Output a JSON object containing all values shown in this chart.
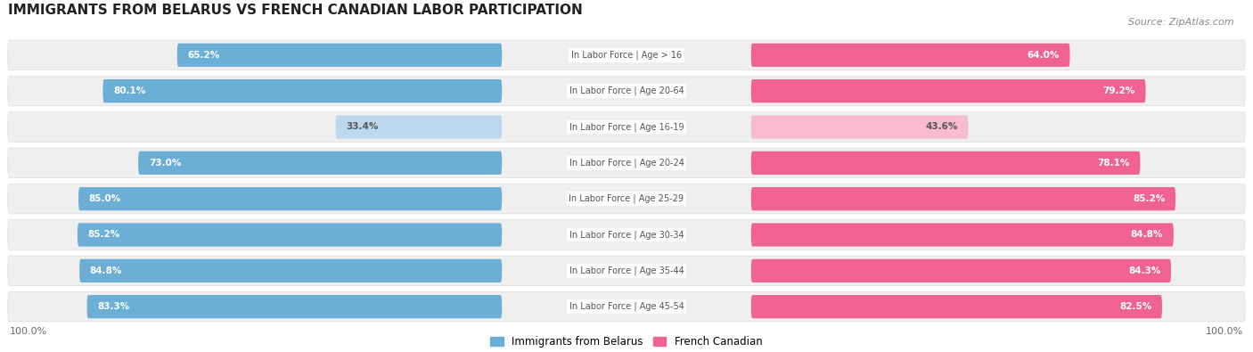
{
  "title": "IMMIGRANTS FROM BELARUS VS FRENCH CANADIAN LABOR PARTICIPATION",
  "source": "Source: ZipAtlas.com",
  "categories": [
    "In Labor Force | Age > 16",
    "In Labor Force | Age 20-64",
    "In Labor Force | Age 16-19",
    "In Labor Force | Age 20-24",
    "In Labor Force | Age 25-29",
    "In Labor Force | Age 30-34",
    "In Labor Force | Age 35-44",
    "In Labor Force | Age 45-54"
  ],
  "belarus_values": [
    65.2,
    80.1,
    33.4,
    73.0,
    85.0,
    85.2,
    84.8,
    83.3
  ],
  "french_values": [
    64.0,
    79.2,
    43.6,
    78.1,
    85.2,
    84.8,
    84.3,
    82.5
  ],
  "belarus_color_normal": "#6baed6",
  "belarus_color_light": "#bdd7ee",
  "french_color_normal": "#f06292",
  "french_color_light": "#f8bbd0",
  "row_bg_color": "#efefef",
  "row_border_color": "#dddddd",
  "label_color_white": "#ffffff",
  "label_color_dark": "#555555",
  "center_label_color": "#555555",
  "title_fontsize": 11,
  "source_fontsize": 8,
  "bar_label_fontsize": 7.5,
  "category_label_fontsize": 7,
  "legend_fontsize": 8.5,
  "axis_label_fontsize": 8,
  "legend_labels": [
    "Immigrants from Belarus",
    "French Canadian"
  ],
  "bottom_labels": [
    "100.0%",
    "100.0%"
  ],
  "light_rows": [
    2
  ]
}
